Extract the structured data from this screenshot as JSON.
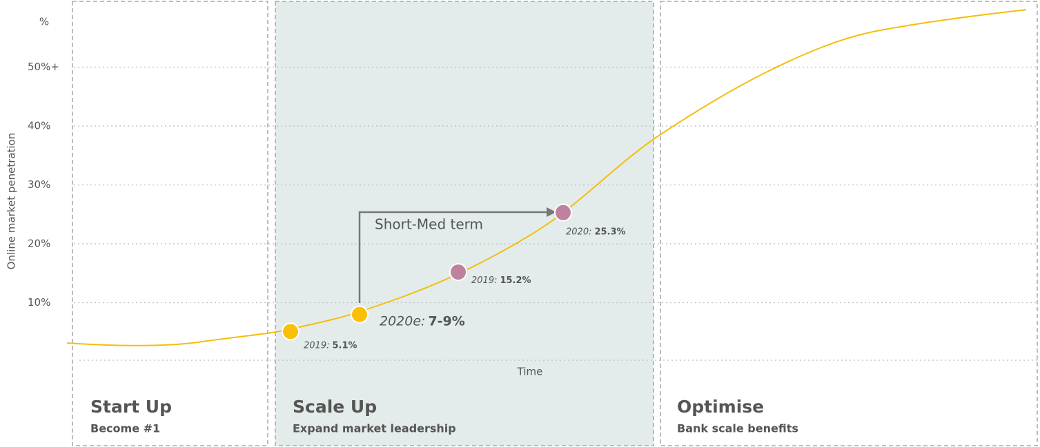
{
  "chart_data": {
    "type": "scurve",
    "y_axis_label": "Online market penetration",
    "y_unit": "%",
    "x_axis_label": "Time",
    "ylim": [
      0,
      60
    ],
    "yticks": [
      {
        "value": 10,
        "label": "10%"
      },
      {
        "value": 20,
        "label": "20%"
      },
      {
        "value": 30,
        "label": "30%"
      },
      {
        "value": 40,
        "label": "40%"
      },
      {
        "value": 50,
        "label": "50%+"
      }
    ],
    "grid": true,
    "curve_color": "#f6bd0c",
    "annotation": "Short-Med term",
    "points": [
      {
        "year": "2019:",
        "value": 5.1,
        "value_label": "5.1%",
        "color": "#fbbf06"
      },
      {
        "year": "2020e:",
        "low": 7,
        "high": 9,
        "value_label": "7-9%",
        "color": "#fbbf06"
      },
      {
        "year": "2019:",
        "value": 15.2,
        "value_label": "15.2%",
        "color": "#c0819f"
      },
      {
        "year": "2020:",
        "value": 25.3,
        "value_label": "25.3%",
        "color": "#c0819f"
      }
    ],
    "phases": [
      {
        "title": "Start Up",
        "subtitle": "Become #1"
      },
      {
        "title": "Scale Up",
        "subtitle": "Expand market leadership"
      },
      {
        "title": "Optimise",
        "subtitle": "Bank scale benefits"
      }
    ]
  }
}
